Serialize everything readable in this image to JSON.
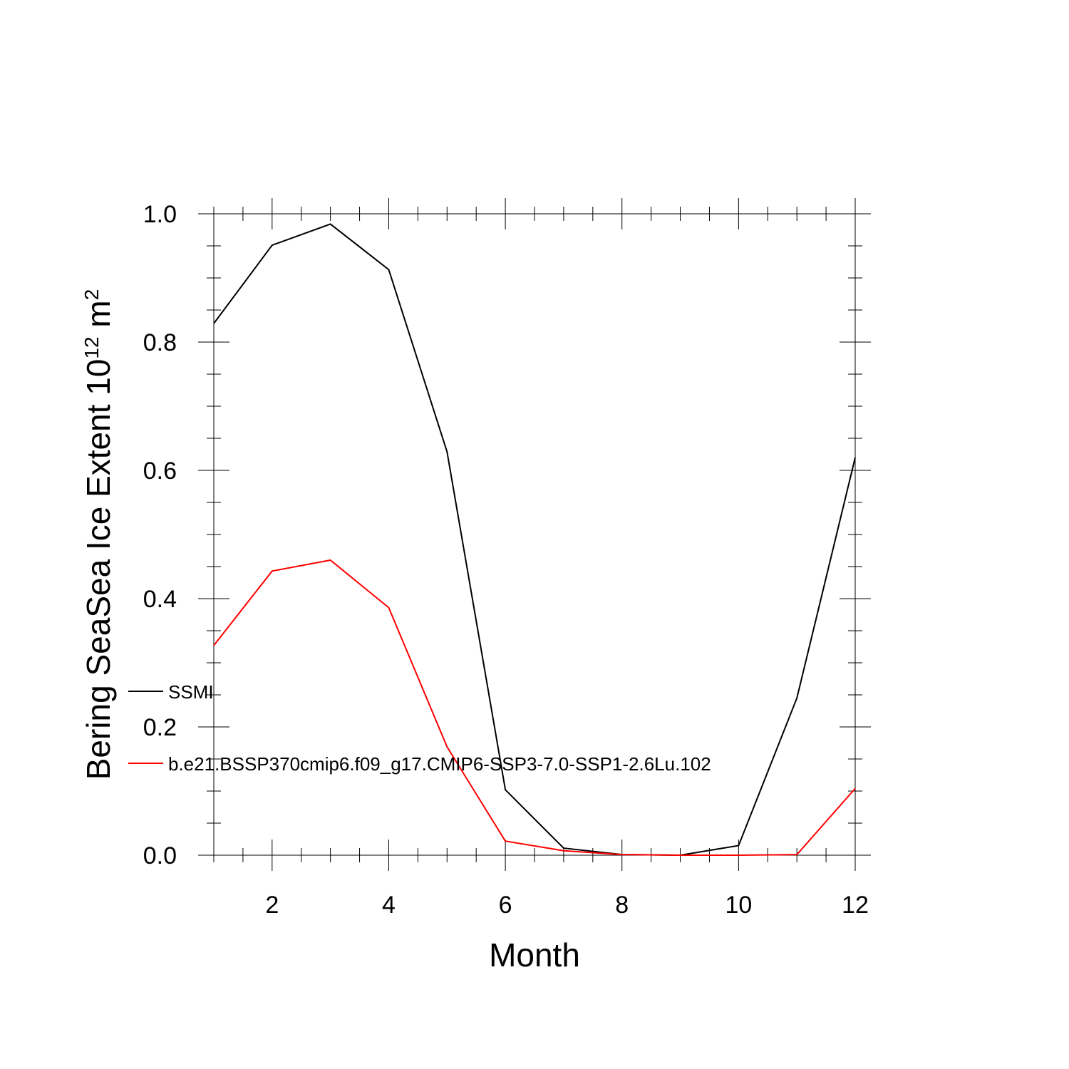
{
  "chart_data": {
    "type": "line",
    "title": "",
    "xlabel": "Month",
    "ylabel": "Bering SeaSea Ice Extent 10",
    "ylabel_superscript": "12",
    "ylabel_unit": " m",
    "ylabel_unit_superscript": "2",
    "xlim": [
      1,
      12
    ],
    "ylim": [
      0,
      1
    ],
    "x_ticks": [
      2,
      4,
      6,
      8,
      10,
      12
    ],
    "x_tick_labels": [
      "2",
      "4",
      "6",
      "8",
      "10",
      "12"
    ],
    "y_ticks": [
      0,
      0.2,
      0.4,
      0.6,
      0.8,
      1.0
    ],
    "y_tick_labels": [
      "0.0",
      "0.2",
      "0.4",
      "0.6",
      "0.8",
      "1.0"
    ],
    "grid": false,
    "legend_position": "left",
    "x": [
      1,
      2,
      3,
      4,
      5,
      6,
      7,
      8,
      9,
      10,
      11,
      12
    ],
    "series": [
      {
        "name": "SSMI",
        "color": "#000000",
        "values": [
          0.829,
          0.951,
          0.984,
          0.913,
          0.629,
          0.102,
          0.011,
          0.001,
          0.0,
          0.015,
          0.245,
          0.62
        ]
      },
      {
        "name": "b.e21.BSSP370cmip6.f09_g17.CMIP6-SSP3-7.0-SSP1-2.6Lu.102",
        "color": "#ff0000",
        "values": [
          0.327,
          0.443,
          0.46,
          0.386,
          0.169,
          0.022,
          0.007,
          0.001,
          0.0,
          0.0,
          0.001,
          0.104
        ]
      }
    ]
  }
}
